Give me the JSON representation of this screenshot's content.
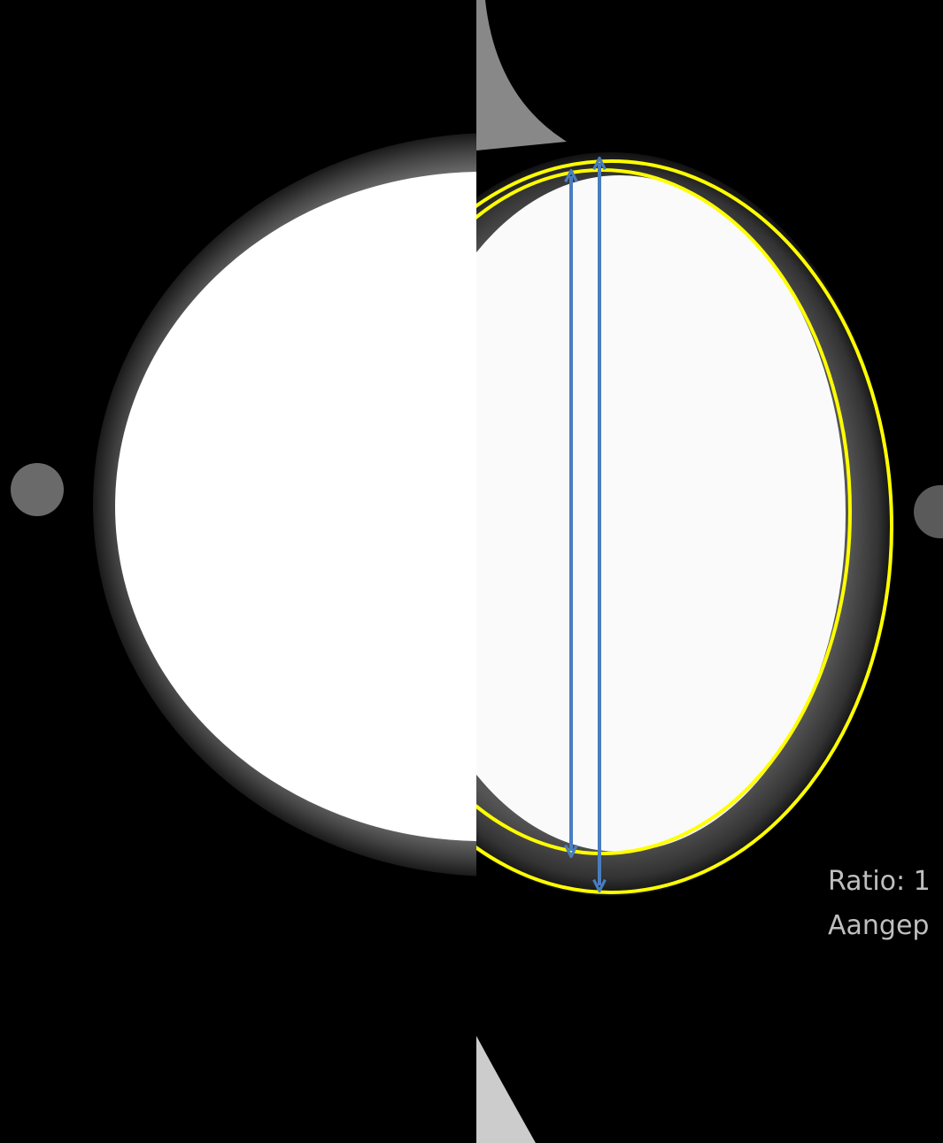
{
  "annotations": {
    "ratio_text": "Ratio: 1",
    "adjusted_text": "Aangep"
  }
}
